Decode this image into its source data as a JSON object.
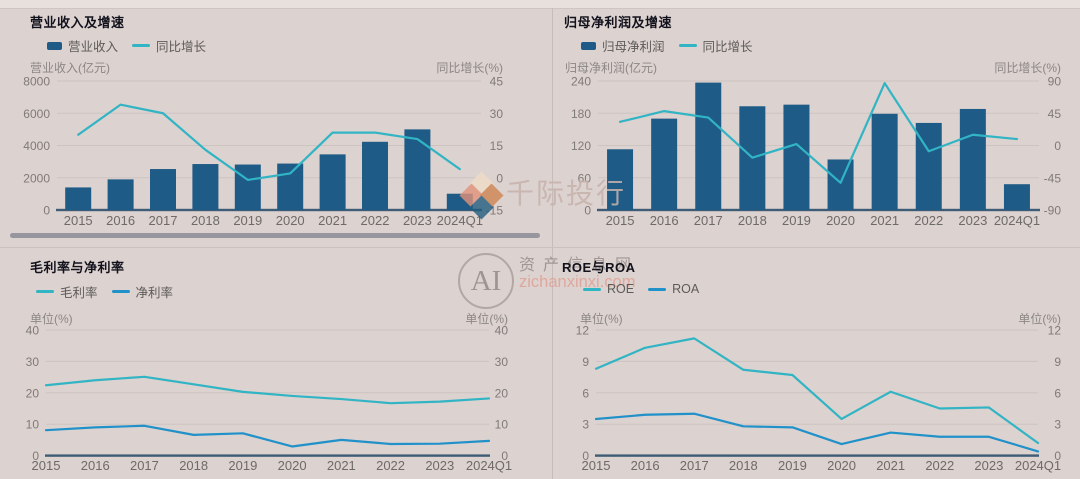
{
  "watermarks": {
    "brand": "千际投行",
    "ai_label": "AI",
    "site_name": "资产信息网",
    "site_url": "zichanxinxi.com"
  },
  "colors": {
    "background": "#dcd2cf",
    "bar_blue": "#1f5b87",
    "teal": "#31b4c4",
    "line_blue": "#2191c9",
    "gridline": "#cdc3c0",
    "axis_baseline": "#3e5c75",
    "tick_text": "#7f7b79",
    "category_text": "#6d6a68"
  },
  "categories": [
    "2015",
    "2016",
    "2017",
    "2018",
    "2019",
    "2020",
    "2021",
    "2022",
    "2023",
    "2024Q1"
  ],
  "chart_data": [
    {
      "type": "bar+line",
      "title": "营业收入及增速",
      "categories": [
        "2015",
        "2016",
        "2017",
        "2018",
        "2019",
        "2020",
        "2021",
        "2022",
        "2023",
        "2024Q1"
      ],
      "left_axis": {
        "label": "营业收入(亿元)",
        "min": 0,
        "max": 8000,
        "ticks": [
          8000,
          6000,
          4000,
          2000,
          0
        ]
      },
      "right_axis": {
        "label": "同比增长(%)",
        "min": -15,
        "max": 45,
        "ticks": [
          45,
          30,
          15,
          0,
          -15
        ]
      },
      "series": [
        {
          "name": "营业收入",
          "type": "bar",
          "axis": "left",
          "color": "#1f5b87",
          "values": [
            1400,
            1900,
            2540,
            2850,
            2820,
            2880,
            3450,
            4230,
            5000,
            1010
          ]
        },
        {
          "name": "同比增长",
          "type": "line",
          "axis": "right",
          "color": "#31b4c4",
          "values": [
            20,
            34,
            30,
            13,
            -1,
            2,
            21,
            21,
            18,
            4
          ]
        }
      ]
    },
    {
      "type": "bar+line",
      "title": "归母净利润及增速",
      "categories": [
        "2015",
        "2016",
        "2017",
        "2018",
        "2019",
        "2020",
        "2021",
        "2022",
        "2023",
        "2024Q1"
      ],
      "left_axis": {
        "label": "归母净利润(亿元)",
        "min": 0,
        "max": 240,
        "ticks": [
          240,
          180,
          120,
          60,
          0
        ]
      },
      "right_axis": {
        "label": "同比增长(%)",
        "min": -90,
        "max": 90,
        "ticks": [
          90,
          45,
          0,
          -45,
          -90
        ]
      },
      "series": [
        {
          "name": "归母净利润",
          "type": "bar",
          "axis": "left",
          "color": "#1f5b87",
          "values": [
            113,
            170,
            237,
            193,
            196,
            94,
            179,
            162,
            188,
            48
          ]
        },
        {
          "name": "同比增长",
          "type": "line",
          "axis": "right",
          "color": "#31b4c4",
          "values": [
            33,
            48,
            39,
            -17,
            2,
            -52,
            87,
            -8,
            15,
            9
          ]
        }
      ]
    },
    {
      "type": "line",
      "title": "毛利率与净利率",
      "categories": [
        "2015",
        "2016",
        "2017",
        "2018",
        "2019",
        "2020",
        "2021",
        "2022",
        "2023",
        "2024Q1"
      ],
      "left_axis": {
        "label": "单位(%)",
        "min": 0,
        "max": 40,
        "ticks": [
          40,
          30,
          20,
          10,
          0
        ]
      },
      "right_axis": {
        "label": "单位(%)",
        "min": 0,
        "max": 40,
        "ticks": [
          40,
          30,
          20,
          10,
          0
        ]
      },
      "series": [
        {
          "name": "毛利率",
          "type": "line",
          "axis": "left",
          "color": "#31b4c4",
          "values": [
            22.4,
            24,
            25.1,
            22.7,
            20.3,
            19,
            18,
            16.7,
            17.2,
            18.2
          ]
        },
        {
          "name": "净利率",
          "type": "line",
          "axis": "left",
          "color": "#2191c9",
          "values": [
            8.1,
            9,
            9.5,
            6.6,
            7.1,
            2.9,
            5,
            3.7,
            3.8,
            4.7
          ]
        }
      ]
    },
    {
      "type": "line",
      "title": "ROE与ROA",
      "categories": [
        "2015",
        "2016",
        "2017",
        "2018",
        "2019",
        "2020",
        "2021",
        "2022",
        "2023",
        "2024Q1"
      ],
      "left_axis": {
        "label": "单位(%)",
        "min": 0,
        "max": 12,
        "ticks": [
          12,
          9,
          6,
          3,
          0
        ]
      },
      "right_axis": {
        "label": "单位(%)",
        "min": 0,
        "max": 12,
        "ticks": [
          12,
          9,
          6,
          3,
          0
        ]
      },
      "series": [
        {
          "name": "ROE",
          "type": "line",
          "axis": "left",
          "color": "#31b4c4",
          "values": [
            8.3,
            10.3,
            11.2,
            8.2,
            7.7,
            3.5,
            6.1,
            4.5,
            4.6,
            1.2
          ]
        },
        {
          "name": "ROA",
          "type": "line",
          "axis": "left",
          "color": "#2191c9",
          "values": [
            3.5,
            3.9,
            4,
            2.8,
            2.7,
            1.1,
            2.2,
            1.8,
            1.8,
            0.4
          ]
        }
      ]
    }
  ]
}
